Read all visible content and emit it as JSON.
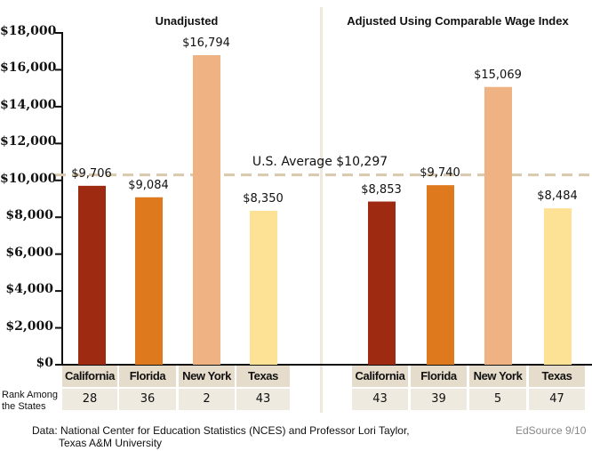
{
  "chart_data": [
    {
      "type": "bar",
      "title": "Unadjusted",
      "categories": [
        "California",
        "Florida",
        "New York",
        "Texas"
      ],
      "values": [
        9706,
        9084,
        16794,
        8350
      ],
      "value_labels": [
        "$9,706",
        "$9,084",
        "$16,794",
        "$8,350"
      ],
      "ranks": [
        "28",
        "36",
        "2",
        "43"
      ],
      "ylim": [
        0,
        18000
      ],
      "yticks": [
        "$0",
        "$2,000",
        "$4,000",
        "$6,000",
        "$8,000",
        "$10,000",
        "$12,000",
        "$14,000",
        "$16,000",
        "$18,000"
      ],
      "grid": false
    },
    {
      "type": "bar",
      "title": "Adjusted Using Comparable Wage Index",
      "categories": [
        "California",
        "Florida",
        "New York",
        "Texas"
      ],
      "values": [
        8853,
        9740,
        15069,
        8484
      ],
      "value_labels": [
        "$8,853",
        "$9,740",
        "$15,069",
        "$8,484"
      ],
      "ranks": [
        "43",
        "39",
        "5",
        "47"
      ],
      "ylim": [
        0,
        18000
      ],
      "grid": false
    }
  ],
  "reference_line": {
    "label": "U.S. Average $10,297",
    "value": 10297,
    "color": "#d8c9ad",
    "style": "dashed"
  },
  "colors": {
    "California": "#9e2a12",
    "Florida": "#de791e",
    "New York": "#efb383",
    "Texas": "#fde195"
  },
  "rank_label": "Rank Among the States",
  "source": {
    "line1": "Data: National Center for Education Statistics (NCES) and Professor Lori Taylor,",
    "line2": "Texas A&M University"
  },
  "credit": "EdSource 9/10"
}
